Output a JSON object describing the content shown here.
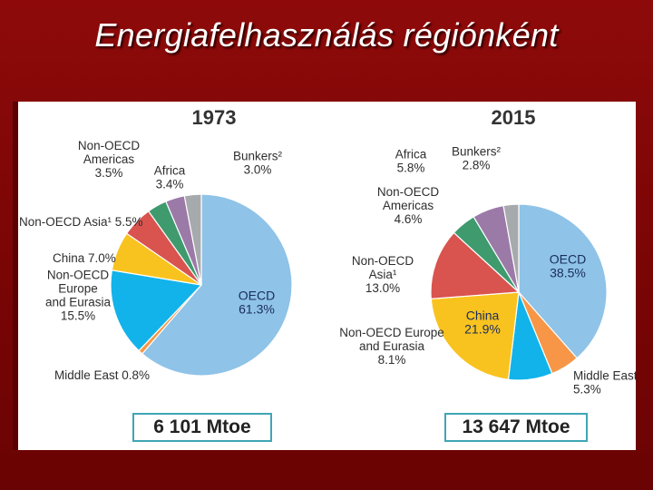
{
  "title": "Energiafelhasználás régiónként",
  "colors": {
    "OECD": "#8fc3e8",
    "Middle East": "#f79646",
    "Non-OECD Europe and Eurasia": "#12b3ea",
    "China": "#f9c31f",
    "Non-OECD Asia": "#d9534f",
    "Non-OECD Americas": "#3f9a6e",
    "Africa": "#9b7aa8",
    "Bunkers": "#a6aaad"
  },
  "chart_data": [
    {
      "type": "pie",
      "title": "1973",
      "total": "6 101 Mtoe",
      "series": [
        {
          "name": "OECD",
          "value": 61.3,
          "label": [
            "OECD",
            "61.3%"
          ]
        },
        {
          "name": "Middle East",
          "value": 0.8,
          "label": [
            "Middle East 0.8%"
          ]
        },
        {
          "name": "Non-OECD Europe and Eurasia",
          "value": 15.5,
          "label": [
            "Non-OECD",
            "Europe",
            "and Eurasia",
            "15.5%"
          ]
        },
        {
          "name": "China",
          "value": 7.0,
          "label": [
            "China 7.0%"
          ]
        },
        {
          "name": "Non-OECD Asia",
          "value": 5.5,
          "label": [
            "Non-OECD Asia¹ 5.5%"
          ]
        },
        {
          "name": "Non-OECD Americas",
          "value": 3.5,
          "label": [
            "Non-OECD",
            "Americas",
            "3.5%"
          ]
        },
        {
          "name": "Africa",
          "value": 3.4,
          "label": [
            "Africa",
            "3.4%"
          ]
        },
        {
          "name": "Bunkers",
          "value": 3.0,
          "label": [
            "Bunkers²",
            "3.0%"
          ]
        }
      ]
    },
    {
      "type": "pie",
      "title": "2015",
      "total": "13 647 Mtoe",
      "series": [
        {
          "name": "OECD",
          "value": 38.5,
          "label": [
            "OECD",
            "38.5%"
          ]
        },
        {
          "name": "Middle East",
          "value": 5.3,
          "label": [
            "Middle East",
            "5.3%"
          ]
        },
        {
          "name": "Non-OECD Europe and Eurasia",
          "value": 8.1,
          "label": [
            "Non-OECD Europe",
            "and Eurasia",
            "8.1%"
          ]
        },
        {
          "name": "China",
          "value": 21.9,
          "label": [
            "China",
            "21.9%"
          ]
        },
        {
          "name": "Non-OECD Asia",
          "value": 13.0,
          "label": [
            "Non-OECD",
            "Asia¹",
            "13.0%"
          ]
        },
        {
          "name": "Non-OECD Americas",
          "value": 4.6,
          "label": [
            "Non-OECD",
            "Americas",
            "4.6%"
          ]
        },
        {
          "name": "Africa",
          "value": 5.8,
          "label": [
            "Africa",
            "5.8%"
          ]
        },
        {
          "name": "Bunkers",
          "value": 2.8,
          "label": [
            "Bunkers²",
            "2.8%"
          ]
        }
      ]
    }
  ]
}
